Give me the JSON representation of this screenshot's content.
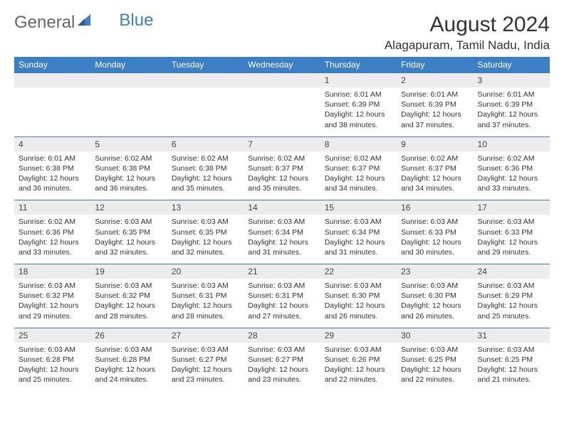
{
  "logo": {
    "text1": "General",
    "text2": "Blue"
  },
  "title": "August 2024",
  "location": "Alagapuram, Tamil Nadu, India",
  "colors": {
    "header_bg": "#3b7fc4",
    "header_text": "#ffffff",
    "daynum_bg": "#ececec",
    "border": "#3b7fc4",
    "text": "#333333",
    "logo_gray": "#666666",
    "logo_blue": "#3b7fc4",
    "background": "#ffffff"
  },
  "day_headers": [
    "Sunday",
    "Monday",
    "Tuesday",
    "Wednesday",
    "Thursday",
    "Friday",
    "Saturday"
  ],
  "weeks": [
    [
      null,
      null,
      null,
      null,
      {
        "n": "1",
        "sr": "6:01 AM",
        "ss": "6:39 PM",
        "dl": "12 hours and 38 minutes."
      },
      {
        "n": "2",
        "sr": "6:01 AM",
        "ss": "6:39 PM",
        "dl": "12 hours and 37 minutes."
      },
      {
        "n": "3",
        "sr": "6:01 AM",
        "ss": "6:39 PM",
        "dl": "12 hours and 37 minutes."
      }
    ],
    [
      {
        "n": "4",
        "sr": "6:01 AM",
        "ss": "6:38 PM",
        "dl": "12 hours and 36 minutes."
      },
      {
        "n": "5",
        "sr": "6:02 AM",
        "ss": "6:38 PM",
        "dl": "12 hours and 36 minutes."
      },
      {
        "n": "6",
        "sr": "6:02 AM",
        "ss": "6:38 PM",
        "dl": "12 hours and 35 minutes."
      },
      {
        "n": "7",
        "sr": "6:02 AM",
        "ss": "6:37 PM",
        "dl": "12 hours and 35 minutes."
      },
      {
        "n": "8",
        "sr": "6:02 AM",
        "ss": "6:37 PM",
        "dl": "12 hours and 34 minutes."
      },
      {
        "n": "9",
        "sr": "6:02 AM",
        "ss": "6:37 PM",
        "dl": "12 hours and 34 minutes."
      },
      {
        "n": "10",
        "sr": "6:02 AM",
        "ss": "6:36 PM",
        "dl": "12 hours and 33 minutes."
      }
    ],
    [
      {
        "n": "11",
        "sr": "6:02 AM",
        "ss": "6:36 PM",
        "dl": "12 hours and 33 minutes."
      },
      {
        "n": "12",
        "sr": "6:03 AM",
        "ss": "6:35 PM",
        "dl": "12 hours and 32 minutes."
      },
      {
        "n": "13",
        "sr": "6:03 AM",
        "ss": "6:35 PM",
        "dl": "12 hours and 32 minutes."
      },
      {
        "n": "14",
        "sr": "6:03 AM",
        "ss": "6:34 PM",
        "dl": "12 hours and 31 minutes."
      },
      {
        "n": "15",
        "sr": "6:03 AM",
        "ss": "6:34 PM",
        "dl": "12 hours and 31 minutes."
      },
      {
        "n": "16",
        "sr": "6:03 AM",
        "ss": "6:33 PM",
        "dl": "12 hours and 30 minutes."
      },
      {
        "n": "17",
        "sr": "6:03 AM",
        "ss": "6:33 PM",
        "dl": "12 hours and 29 minutes."
      }
    ],
    [
      {
        "n": "18",
        "sr": "6:03 AM",
        "ss": "6:32 PM",
        "dl": "12 hours and 29 minutes."
      },
      {
        "n": "19",
        "sr": "6:03 AM",
        "ss": "6:32 PM",
        "dl": "12 hours and 28 minutes."
      },
      {
        "n": "20",
        "sr": "6:03 AM",
        "ss": "6:31 PM",
        "dl": "12 hours and 28 minutes."
      },
      {
        "n": "21",
        "sr": "6:03 AM",
        "ss": "6:31 PM",
        "dl": "12 hours and 27 minutes."
      },
      {
        "n": "22",
        "sr": "6:03 AM",
        "ss": "6:30 PM",
        "dl": "12 hours and 26 minutes."
      },
      {
        "n": "23",
        "sr": "6:03 AM",
        "ss": "6:30 PM",
        "dl": "12 hours and 26 minutes."
      },
      {
        "n": "24",
        "sr": "6:03 AM",
        "ss": "6:29 PM",
        "dl": "12 hours and 25 minutes."
      }
    ],
    [
      {
        "n": "25",
        "sr": "6:03 AM",
        "ss": "6:28 PM",
        "dl": "12 hours and 25 minutes."
      },
      {
        "n": "26",
        "sr": "6:03 AM",
        "ss": "6:28 PM",
        "dl": "12 hours and 24 minutes."
      },
      {
        "n": "27",
        "sr": "6:03 AM",
        "ss": "6:27 PM",
        "dl": "12 hours and 23 minutes."
      },
      {
        "n": "28",
        "sr": "6:03 AM",
        "ss": "6:27 PM",
        "dl": "12 hours and 23 minutes."
      },
      {
        "n": "29",
        "sr": "6:03 AM",
        "ss": "6:26 PM",
        "dl": "12 hours and 22 minutes."
      },
      {
        "n": "30",
        "sr": "6:03 AM",
        "ss": "6:25 PM",
        "dl": "12 hours and 22 minutes."
      },
      {
        "n": "31",
        "sr": "6:03 AM",
        "ss": "6:25 PM",
        "dl": "12 hours and 21 minutes."
      }
    ]
  ],
  "labels": {
    "sunrise": "Sunrise:",
    "sunset": "Sunset:",
    "daylight": "Daylight:"
  }
}
